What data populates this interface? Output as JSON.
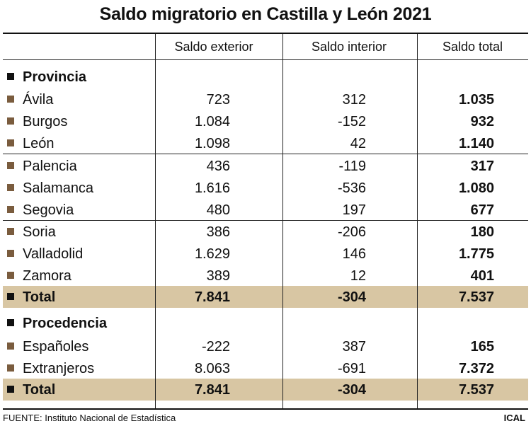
{
  "chart_data": {
    "type": "table",
    "title": "Saldo migratorio en Castilla y León 2021",
    "columns": [
      "Saldo exterior",
      "Saldo interior",
      "Saldo total"
    ],
    "sections": [
      {
        "name": "Provincia",
        "rows": [
          {
            "label": "Ávila",
            "values": [
              "723",
              "312",
              "1.035"
            ]
          },
          {
            "label": "Burgos",
            "values": [
              "1.084",
              "-152",
              "932"
            ]
          },
          {
            "label": "León",
            "values": [
              "1.098",
              "42",
              "1.140"
            ]
          },
          {
            "label": "Palencia",
            "values": [
              "436",
              "-119",
              "317"
            ]
          },
          {
            "label": "Salamanca",
            "values": [
              "1.616",
              "-536",
              "1.080"
            ]
          },
          {
            "label": "Segovia",
            "values": [
              "480",
              "197",
              "677"
            ]
          },
          {
            "label": "Soria",
            "values": [
              "386",
              "-206",
              "180"
            ]
          },
          {
            "label": "Valladolid",
            "values": [
              "1.629",
              "146",
              "1.775"
            ]
          },
          {
            "label": "Zamora",
            "values": [
              "389",
              "12",
              "401"
            ]
          }
        ],
        "total": {
          "label": "Total",
          "values": [
            "7.841",
            "-304",
            "7.537"
          ]
        }
      },
      {
        "name": "Procedencia",
        "rows": [
          {
            "label": "Españoles",
            "values": [
              "-222",
              "387",
              "165"
            ]
          },
          {
            "label": "Extranjeros",
            "values": [
              "8.063",
              "-691",
              "7.372"
            ]
          }
        ],
        "total": {
          "label": "Total",
          "values": [
            "7.841",
            "-304",
            "7.537"
          ]
        }
      }
    ]
  },
  "footer": {
    "source": "FUENTE: Instituto Nacional de Estadística",
    "credit": "ICAL"
  },
  "colors": {
    "highlight": "#d8c6a3",
    "marker": "#7a5c3e"
  }
}
